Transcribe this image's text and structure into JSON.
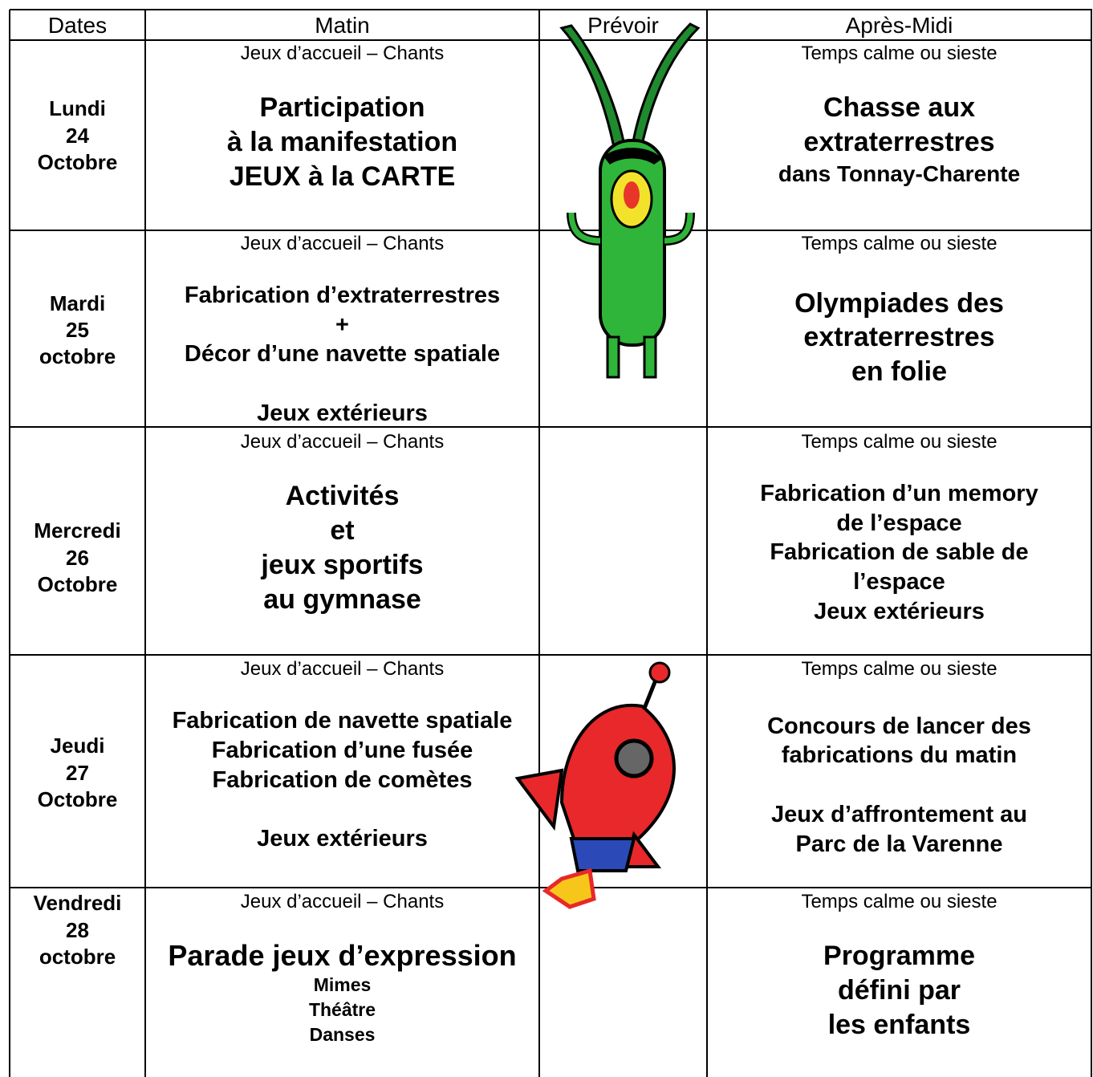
{
  "header": [
    "Dates",
    "Matin",
    "Prévoir",
    "Après-Midi"
  ],
  "rows": [
    {
      "date": [
        "Lundi",
        "24",
        "Octobre"
      ],
      "morning": [
        "Jeux d’accueil – Chants",
        "Participation",
        "à la manifestation",
        "JEUX à la CARTE"
      ],
      "afternoon": [
        "Temps calme ou sieste",
        "Chasse aux",
        "extraterrestres",
        "dans Tonnay-Charente"
      ]
    },
    {
      "date": [
        "Mardi",
        "25",
        "octobre"
      ],
      "morning": [
        "Jeux d’accueil – Chants",
        "Fabrication d’extraterrestres",
        "+",
        "Décor d’une navette spatiale",
        "Jeux extérieurs"
      ],
      "afternoon": [
        "Temps calme ou sieste",
        "Olympiades des",
        "extraterrestres",
        "en folie"
      ]
    },
    {
      "date": [
        "Mercredi",
        "26",
        "Octobre"
      ],
      "morning": [
        "Jeux d’accueil – Chants",
        "Activités",
        "et",
        "jeux sportifs",
        "au gymnase"
      ],
      "afternoon": [
        "Temps calme ou sieste",
        "Fabrication d’un memory",
        "de l’espace",
        "Fabrication de sable de",
        "l’espace",
        "Jeux extérieurs"
      ]
    },
    {
      "date": [
        "Jeudi",
        "27",
        "Octobre"
      ],
      "morning": [
        "Jeux d’accueil – Chants",
        "Fabrication de navette spatiale",
        "Fabrication d’une fusée",
        "Fabrication de comètes",
        "Jeux extérieurs"
      ],
      "afternoon": [
        "Temps calme ou sieste",
        "Concours de lancer des",
        "fabrications du matin",
        "Jeux d’affrontement au",
        "Parc de la Varenne"
      ]
    },
    {
      "date": [
        "Vendredi",
        "28",
        "octobre"
      ],
      "morning": [
        "Jeux d’accueil – Chants",
        "Parade jeux d’expression",
        "Mimes",
        "Théâtre",
        "Danses"
      ],
      "afternoon": [
        "Temps calme ou sieste",
        "Programme",
        "défini par",
        "les enfants"
      ]
    }
  ]
}
